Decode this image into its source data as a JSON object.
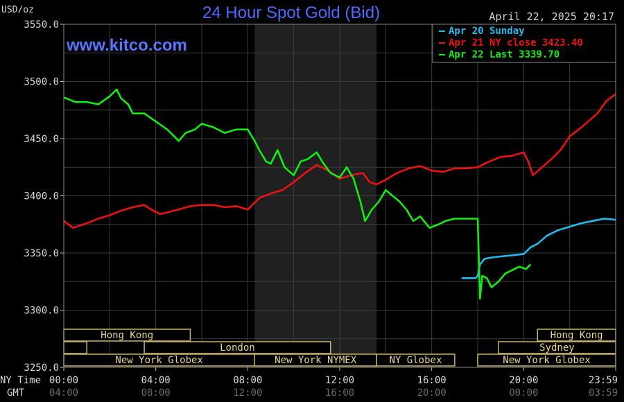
{
  "chart_data": {
    "type": "line",
    "title": "24 Hour Spot Gold (Bid)",
    "watermark": "www.kitco.com",
    "timestamp": "April 22, 2025 20:17",
    "ylabel": "USD/oz",
    "ylim": [
      3250,
      3550
    ],
    "yticks": [
      "3550.0",
      "3500.0",
      "3450.0",
      "3400.0",
      "3350.0",
      "3300.0",
      "3250.0"
    ],
    "yticks_values": [
      3550,
      3500,
      3450,
      3400,
      3350,
      3300,
      3250
    ],
    "xlim": [
      0,
      24
    ],
    "x_row_labels": {
      "ny": "NY Time",
      "gmt": "GMT"
    },
    "xticks_values": [
      0,
      4,
      8,
      12,
      16,
      20,
      24
    ],
    "xticks_ny": [
      "00:00",
      "04:00",
      "08:00",
      "12:00",
      "16:00",
      "20:00",
      "23:59"
    ],
    "xticks_gmt": [
      "04:00",
      "08:00",
      "12:00",
      "16:00",
      "20:00",
      "00:00",
      "03:59"
    ],
    "grid": true,
    "legend_position": "top-right",
    "shaded_session": [
      8.3,
      13.6
    ],
    "series": [
      {
        "name": "Apr 20 Sunday",
        "color": "#22bbee",
        "x": [
          17.3,
          17.9,
          18.0,
          18.1,
          18.3,
          18.6,
          19.0,
          19.5,
          20.0,
          20.3,
          20.6,
          21.0,
          21.5,
          22.0,
          22.5,
          23.0,
          23.5,
          24.0
        ],
        "y": [
          3328,
          3328,
          3330,
          3340,
          3345,
          3346,
          3347,
          3348,
          3349,
          3355,
          3358,
          3365,
          3370,
          3373,
          3376,
          3378,
          3380,
          3379
        ]
      },
      {
        "name": "Apr 21 NY close 3423.40",
        "color": "#ee1111",
        "x": [
          0.0,
          0.4,
          1.0,
          1.5,
          2.0,
          2.5,
          3.0,
          3.5,
          3.8,
          4.2,
          4.6,
          5.0,
          5.5,
          6.0,
          6.5,
          7.0,
          7.5,
          8.0,
          8.5,
          9.0,
          9.5,
          10.0,
          10.5,
          11.0,
          11.5,
          12.0,
          12.5,
          13.0,
          13.3,
          13.6,
          14.0,
          14.5,
          15.0,
          15.5,
          16.0,
          16.5,
          17.0,
          17.5,
          18.0,
          18.5,
          19.0,
          19.5,
          20.0,
          20.2,
          20.4,
          20.8,
          21.2,
          21.6,
          22.0,
          22.4,
          22.8,
          23.2,
          23.6,
          24.0
        ],
        "y": [
          3378,
          3372,
          3376,
          3380,
          3383,
          3387,
          3390,
          3392,
          3388,
          3384,
          3386,
          3388,
          3391,
          3392,
          3392,
          3390,
          3391,
          3388,
          3398,
          3402,
          3405,
          3412,
          3420,
          3427,
          3422,
          3415,
          3418,
          3420,
          3412,
          3410,
          3414,
          3420,
          3424,
          3426,
          3422,
          3421,
          3424,
          3424,
          3425,
          3430,
          3434,
          3435,
          3438,
          3430,
          3418,
          3425,
          3432,
          3440,
          3452,
          3458,
          3465,
          3472,
          3483,
          3489
        ]
      },
      {
        "name": "Apr 22 Last 3339.70",
        "color": "#11ee11",
        "x": [
          0.0,
          0.5,
          1.0,
          1.5,
          2.0,
          2.3,
          2.5,
          2.8,
          3.0,
          3.5,
          4.0,
          4.5,
          5.0,
          5.3,
          5.7,
          6.0,
          6.5,
          7.0,
          7.5,
          8.0,
          8.3,
          8.5,
          8.8,
          9.0,
          9.3,
          9.6,
          10.0,
          10.3,
          10.6,
          11.0,
          11.3,
          11.6,
          12.0,
          12.3,
          12.6,
          12.9,
          13.1,
          13.4,
          13.7,
          14.0,
          14.3,
          14.6,
          14.9,
          15.2,
          15.5,
          15.9,
          16.3,
          16.6,
          17.0,
          17.5,
          18.0,
          18.1,
          18.2,
          18.4,
          18.6,
          18.9,
          19.2,
          19.5,
          19.8,
          20.1,
          20.3
        ],
        "y": [
          3486,
          3482,
          3482,
          3480,
          3487,
          3493,
          3485,
          3480,
          3472,
          3472,
          3465,
          3458,
          3448,
          3455,
          3458,
          3463,
          3460,
          3455,
          3458,
          3458,
          3448,
          3440,
          3430,
          3428,
          3440,
          3425,
          3418,
          3430,
          3432,
          3438,
          3428,
          3420,
          3416,
          3425,
          3415,
          3395,
          3378,
          3388,
          3395,
          3405,
          3400,
          3395,
          3388,
          3378,
          3382,
          3372,
          3375,
          3378,
          3380,
          3380,
          3380,
          3310,
          3330,
          3328,
          3320,
          3325,
          3332,
          3335,
          3338,
          3336,
          3340
        ]
      }
    ],
    "sessions": [
      {
        "label": "Hong Kong",
        "row": 0,
        "start": 0.0,
        "end": 5.5
      },
      {
        "label": "Hong Kong",
        "row": 0,
        "start": 20.6,
        "end": 24.0
      },
      {
        "label": "",
        "row": 1,
        "start": 0.0,
        "end": 1.0
      },
      {
        "label": "London",
        "row": 1,
        "start": 3.5,
        "end": 11.6
      },
      {
        "label": "Sydney",
        "row": 1,
        "start": 18.9,
        "end": 24.0
      },
      {
        "label": "New York Globex",
        "row": 2,
        "start": 0.0,
        "end": 8.3
      },
      {
        "label": "New York NYMEX",
        "row": 2,
        "start": 8.3,
        "end": 13.6
      },
      {
        "label": "NY Globex",
        "row": 2,
        "start": 13.6,
        "end": 17.0
      },
      {
        "label": "New York Globex",
        "row": 2,
        "start": 18.0,
        "end": 24.0
      }
    ]
  }
}
